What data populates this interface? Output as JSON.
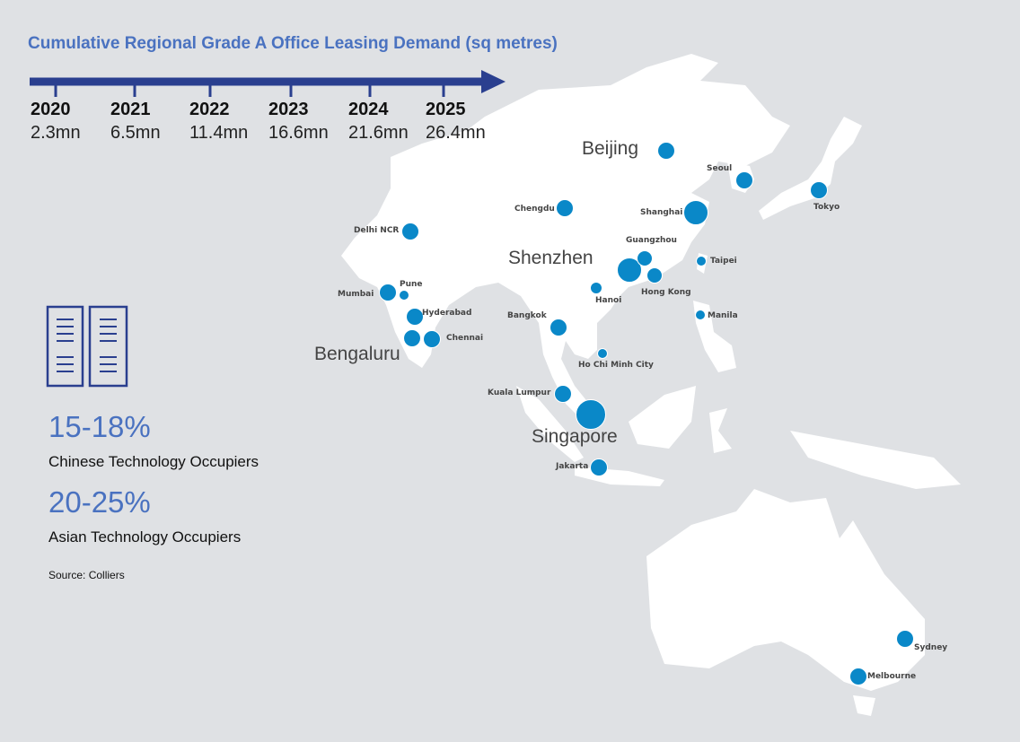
{
  "title": "Cumulative Regional Grade A Office Leasing Demand (sq metres)",
  "timeline": [
    {
      "year": "2020",
      "value": "2.3mn"
    },
    {
      "year": "2021",
      "value": "6.5mn"
    },
    {
      "year": "2022",
      "value": "11.4mn"
    },
    {
      "year": "2023",
      "value": "16.6mn"
    },
    {
      "year": "2024",
      "value": "21.6mn"
    },
    {
      "year": "2025",
      "value": "26.4mn"
    }
  ],
  "highlight_cities": [
    "Beijing",
    "Shenzhen",
    "Bengaluru",
    "Singapore"
  ],
  "cities": [
    "Seoul",
    "Tokyo",
    "Chengdu",
    "Shanghai",
    "Delhi NCR",
    "Guangzhou",
    "Taipei",
    "Hong Kong",
    "Hanoi",
    "Pune",
    "Mumbai",
    "Hyderabad",
    "Chennai",
    "Bangkok",
    "Manila",
    "Ho Chi Minh City",
    "Kuala Lumpur",
    "Jakarta",
    "Sydney",
    "Melbourne"
  ],
  "stats": [
    {
      "value": "15-18%",
      "label": "Chinese Technology Occupiers"
    },
    {
      "value": "20-25%",
      "label": "Asian Technology Occupiers"
    }
  ],
  "source": "Source: Colliers",
  "colors": {
    "background": "#dfe1e4",
    "land": "#ffffff",
    "bubble": "#0a88c8",
    "accent": "#4a72c0",
    "arrow": "#2a3f8f"
  },
  "icon": "office-buildings-icon"
}
